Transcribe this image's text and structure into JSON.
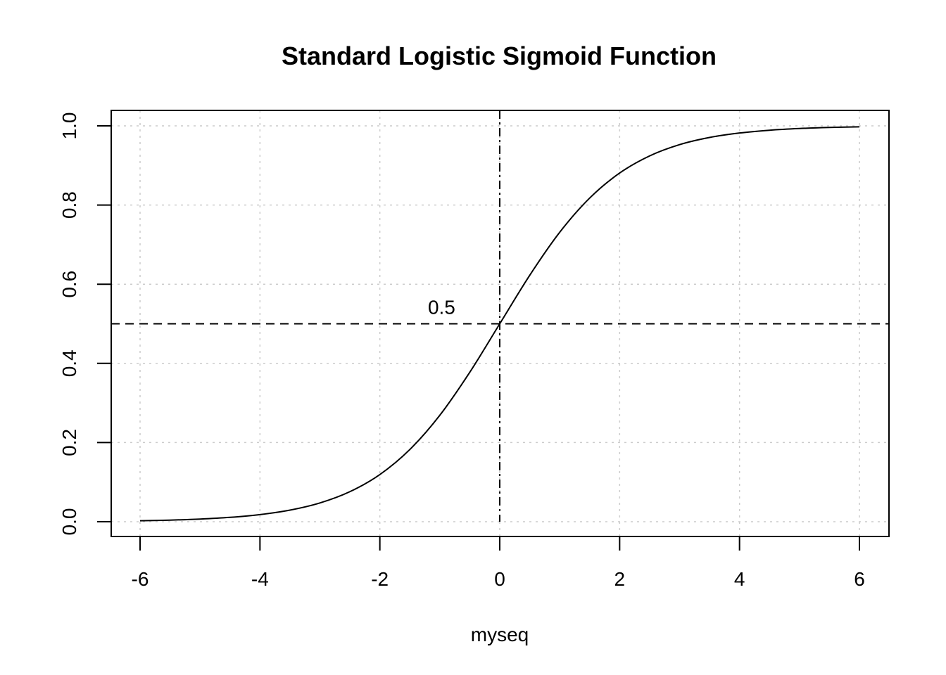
{
  "chart_data": {
    "type": "line",
    "title": "Standard Logistic Sigmoid Function",
    "xlabel": "myseq",
    "ylabel": "",
    "xlim": [
      -6,
      6
    ],
    "ylim": [
      0,
      1
    ],
    "x_ticks": [
      -6,
      -4,
      -2,
      0,
      2,
      4,
      6
    ],
    "x_tick_labels": [
      "-6",
      "-4",
      "-2",
      "0",
      "2",
      "4",
      "6"
    ],
    "y_ticks": [
      0.0,
      0.2,
      0.4,
      0.6,
      0.8,
      1.0
    ],
    "y_tick_labels": [
      "0.0",
      "0.2",
      "0.4",
      "0.6",
      "0.8",
      "1.0"
    ],
    "grid": true,
    "grid_style": "dotted",
    "grid_color": "#cccccc",
    "line_color": "#000000",
    "series": [
      {
        "x": [
          -6,
          -5.5,
          -5,
          -4.5,
          -4,
          -3.5,
          -3,
          -2.5,
          -2,
          -1.5,
          -1,
          -0.5,
          0,
          0.5,
          1,
          1.5,
          2,
          2.5,
          3,
          3.5,
          4,
          4.5,
          5,
          5.5,
          6
        ],
        "y": [
          0.0025,
          0.0041,
          0.0067,
          0.011,
          0.018,
          0.0293,
          0.0474,
          0.0759,
          0.1192,
          0.1824,
          0.2689,
          0.3775,
          0.5,
          0.6225,
          0.7311,
          0.8176,
          0.8808,
          0.9241,
          0.9526,
          0.9707,
          0.982,
          0.989,
          0.9933,
          0.9959,
          0.9975
        ]
      }
    ],
    "reference_lines": [
      {
        "orientation": "horizontal",
        "value": 0.5,
        "style": "dashed"
      },
      {
        "orientation": "vertical",
        "value": 0,
        "style": "dashdot"
      }
    ],
    "annotations": [
      {
        "text": "0.5",
        "x": -0.5,
        "y": 0.55
      }
    ]
  }
}
